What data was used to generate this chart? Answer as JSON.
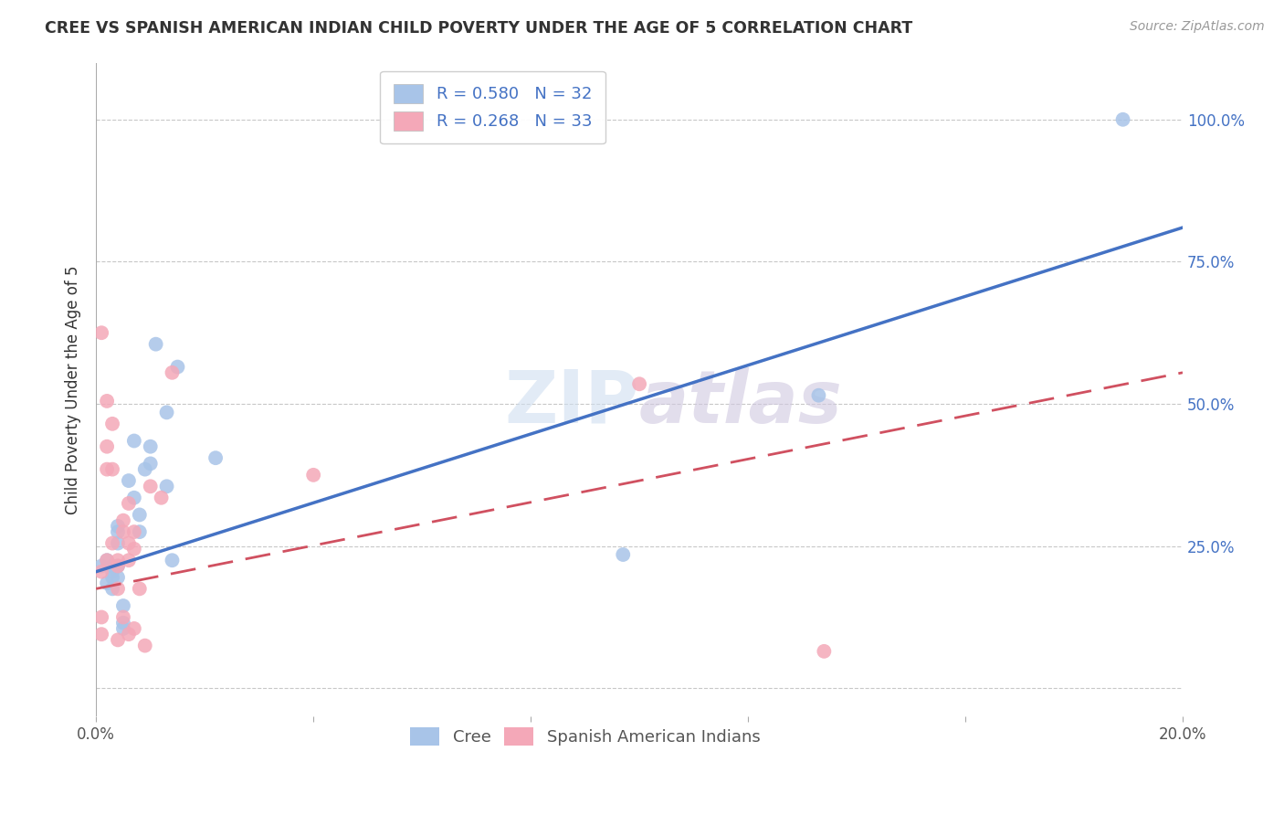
{
  "title": "CREE VS SPANISH AMERICAN INDIAN CHILD POVERTY UNDER THE AGE OF 5 CORRELATION CHART",
  "source": "Source: ZipAtlas.com",
  "ylabel": "Child Poverty Under the Age of 5",
  "xlim": [
    0.0,
    0.2
  ],
  "ylim": [
    -0.05,
    1.1
  ],
  "yticks": [
    0.0,
    0.25,
    0.5,
    0.75,
    1.0
  ],
  "ytick_labels_right": [
    "",
    "25.0%",
    "50.0%",
    "75.0%",
    "100.0%"
  ],
  "xticks": [
    0.0,
    0.04,
    0.08,
    0.12,
    0.16,
    0.2
  ],
  "xtick_labels": [
    "0.0%",
    "",
    "",
    "",
    "",
    "20.0%"
  ],
  "cree_color": "#a8c4e8",
  "spanish_color": "#f4a8b8",
  "cree_line_color": "#4472c4",
  "spanish_line_color": "#d05060",
  "background_color": "#ffffff",
  "grid_color": "#c8c8c8",
  "watermark": "ZIPAtlas",
  "cree_line_x0": 0.0,
  "cree_line_y0": 0.205,
  "cree_line_x1": 0.2,
  "cree_line_y1": 0.81,
  "spanish_line_x0": 0.0,
  "spanish_line_y0": 0.175,
  "spanish_line_x1": 0.2,
  "spanish_line_y1": 0.555,
  "cree_x": [
    0.001,
    0.002,
    0.002,
    0.003,
    0.003,
    0.003,
    0.003,
    0.004,
    0.004,
    0.004,
    0.004,
    0.004,
    0.005,
    0.005,
    0.005,
    0.006,
    0.007,
    0.007,
    0.008,
    0.008,
    0.009,
    0.01,
    0.01,
    0.011,
    0.013,
    0.013,
    0.014,
    0.015,
    0.022,
    0.097,
    0.133,
    0.189
  ],
  "cree_y": [
    0.215,
    0.225,
    0.185,
    0.215,
    0.205,
    0.195,
    0.175,
    0.275,
    0.285,
    0.255,
    0.215,
    0.195,
    0.145,
    0.115,
    0.105,
    0.365,
    0.435,
    0.335,
    0.305,
    0.275,
    0.385,
    0.425,
    0.395,
    0.605,
    0.485,
    0.355,
    0.225,
    0.565,
    0.405,
    0.235,
    0.515,
    1.0
  ],
  "spanish_x": [
    0.001,
    0.001,
    0.001,
    0.001,
    0.002,
    0.002,
    0.002,
    0.002,
    0.003,
    0.003,
    0.003,
    0.004,
    0.004,
    0.004,
    0.004,
    0.005,
    0.005,
    0.005,
    0.006,
    0.006,
    0.006,
    0.006,
    0.007,
    0.007,
    0.007,
    0.008,
    0.009,
    0.01,
    0.012,
    0.014,
    0.04,
    0.1,
    0.134
  ],
  "spanish_y": [
    0.625,
    0.205,
    0.125,
    0.095,
    0.505,
    0.425,
    0.385,
    0.225,
    0.465,
    0.385,
    0.255,
    0.225,
    0.215,
    0.175,
    0.085,
    0.295,
    0.275,
    0.125,
    0.325,
    0.255,
    0.225,
    0.095,
    0.275,
    0.245,
    0.105,
    0.175,
    0.075,
    0.355,
    0.335,
    0.555,
    0.375,
    0.535,
    0.065
  ]
}
